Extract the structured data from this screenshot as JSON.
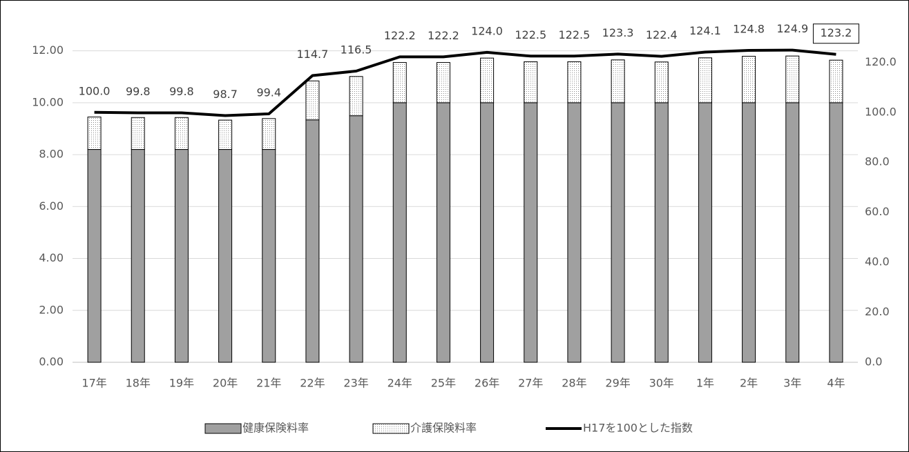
{
  "chart_data": {
    "type": "bar",
    "stacked": true,
    "categories": [
      "17年",
      "18年",
      "19年",
      "20年",
      "21年",
      "22年",
      "23年",
      "24年",
      "25年",
      "26年",
      "27年",
      "28年",
      "29年",
      "30年",
      "1年",
      "2年",
      "3年",
      "4年"
    ],
    "ylim": [
      0,
      13
    ],
    "yticks": [
      {
        "value": 0,
        "label": "0.00"
      },
      {
        "value": 2,
        "label": "2.00"
      },
      {
        "value": 4,
        "label": "4.00"
      },
      {
        "value": 6,
        "label": "6.00"
      },
      {
        "value": 8,
        "label": "8.00"
      },
      {
        "value": 10,
        "label": "10.00"
      },
      {
        "value": 12,
        "label": "12.00"
      }
    ],
    "y2lim": [
      0,
      135
    ],
    "y2ticks": [
      {
        "value": 0,
        "label": "0.0"
      },
      {
        "value": 20,
        "label": "20.0"
      },
      {
        "value": 40,
        "label": "40.0"
      },
      {
        "value": 60,
        "label": "60.0"
      },
      {
        "value": 80,
        "label": "80.0"
      },
      {
        "value": 100,
        "label": "100.0"
      },
      {
        "value": 120,
        "label": "120.0"
      }
    ],
    "grid": true,
    "legend": "bottom",
    "series": [
      {
        "name": "健康保険料率",
        "color": "#a0a0a0",
        "values": [
          8.2,
          8.2,
          8.2,
          8.2,
          8.2,
          9.34,
          9.5,
          10,
          10,
          10,
          10,
          10,
          10,
          10,
          10,
          10,
          10,
          10
        ]
      },
      {
        "name": "介護保険料率",
        "color": "#d0d0d0",
        "pattern": "dots",
        "values": [
          1.25,
          1.23,
          1.23,
          1.13,
          1.19,
          1.5,
          1.51,
          1.55,
          1.55,
          1.72,
          1.58,
          1.58,
          1.65,
          1.57,
          1.73,
          1.79,
          1.8,
          1.64
        ]
      },
      {
        "name": "H17を100とした指数",
        "color": "#000000",
        "type": "line",
        "axis": "y2",
        "values": [
          100,
          99.8,
          99.8,
          98.7,
          99.4,
          114.7,
          116.5,
          122.2,
          122.2,
          124,
          122.5,
          122.5,
          123.3,
          122.4,
          124.1,
          124.8,
          124.9,
          123.2
        ],
        "value_labels": [
          "100.0",
          "99.8",
          "99.8",
          "98.7",
          "99.4",
          "114.7",
          "116.5",
          "122.2",
          "122.2",
          "124.0",
          "122.5",
          "122.5",
          "123.3",
          "122.4",
          "124.1",
          "124.8",
          "124.9",
          "123.2"
        ]
      }
    ]
  }
}
